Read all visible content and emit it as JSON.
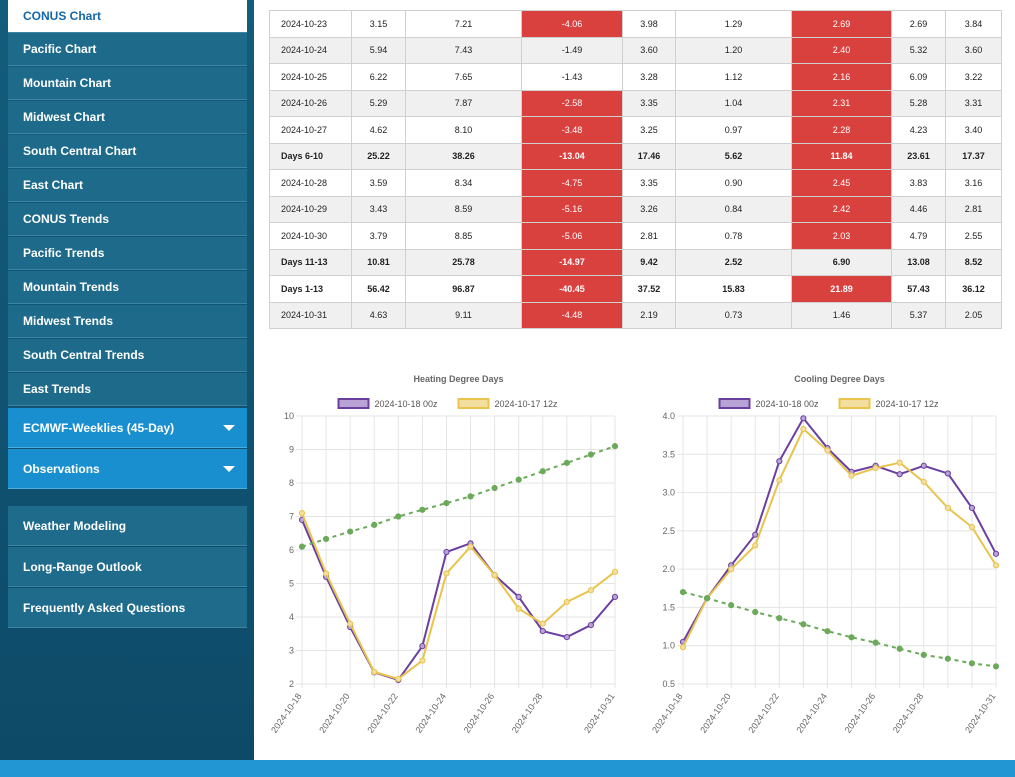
{
  "sidebar": {
    "items": [
      "CONUS Chart",
      "Pacific Chart",
      "Mountain Chart",
      "Midwest Chart",
      "South Central Chart",
      "East Chart",
      "CONUS Trends",
      "Pacific Trends",
      "Mountain Trends",
      "Midwest Trends",
      "South Central Trends",
      "East Trends"
    ],
    "expandable": [
      "ECMWF-Weeklies (45-Day)",
      "Observations"
    ],
    "links": [
      "Weather Modeling",
      "Long-Range Outlook",
      "Frequently Asked Questions"
    ]
  },
  "table": {
    "rows": [
      {
        "label": "2024-10-23",
        "cells": [
          "3.15",
          "7.21",
          "-4.06",
          "3.98",
          "1.29",
          "2.69",
          "2.69",
          "3.84"
        ],
        "highlight": [
          2,
          5
        ]
      },
      {
        "label": "2024-10-24",
        "cells": [
          "5.94",
          "7.43",
          "-1.49",
          "3.60",
          "1.20",
          "2.40",
          "5.32",
          "3.60"
        ],
        "highlight": [
          5
        ]
      },
      {
        "label": "2024-10-25",
        "cells": [
          "6.22",
          "7.65",
          "-1.43",
          "3.28",
          "1.12",
          "2.16",
          "6.09",
          "3.22"
        ],
        "highlight": [
          5
        ]
      },
      {
        "label": "2024-10-26",
        "cells": [
          "5.29",
          "7.87",
          "-2.58",
          "3.35",
          "1.04",
          "2.31",
          "5.28",
          "3.31"
        ],
        "highlight": [
          2,
          5
        ]
      },
      {
        "label": "2024-10-27",
        "cells": [
          "4.62",
          "8.10",
          "-3.48",
          "3.25",
          "0.97",
          "2.28",
          "4.23",
          "3.40"
        ],
        "highlight": [
          2,
          5
        ]
      },
      {
        "label": "Days 6-10",
        "cells": [
          "25.22",
          "38.26",
          "-13.04",
          "17.46",
          "5.62",
          "11.84",
          "23.61",
          "17.37"
        ],
        "highlight": [
          2,
          5
        ],
        "bold": true
      },
      {
        "label": "2024-10-28",
        "cells": [
          "3.59",
          "8.34",
          "-4.75",
          "3.35",
          "0.90",
          "2.45",
          "3.83",
          "3.16"
        ],
        "highlight": [
          2,
          5
        ]
      },
      {
        "label": "2024-10-29",
        "cells": [
          "3.43",
          "8.59",
          "-5.16",
          "3.26",
          "0.84",
          "2.42",
          "4.46",
          "2.81"
        ],
        "highlight": [
          2,
          5
        ]
      },
      {
        "label": "2024-10-30",
        "cells": [
          "3.79",
          "8.85",
          "-5.06",
          "2.81",
          "0.78",
          "2.03",
          "4.79",
          "2.55"
        ],
        "highlight": [
          2,
          5
        ]
      },
      {
        "label": "Days 11-13",
        "cells": [
          "10.81",
          "25.78",
          "-14.97",
          "9.42",
          "2.52",
          "6.90",
          "13.08",
          "8.52"
        ],
        "highlight": [
          2
        ],
        "bold": true
      },
      {
        "label": "Days 1-13",
        "cells": [
          "56.42",
          "96.87",
          "-40.45",
          "37.52",
          "15.83",
          "21.89",
          "57.43",
          "36.12"
        ],
        "highlight": [
          2,
          5
        ],
        "bold": true
      },
      {
        "label": "2024-10-31",
        "cells": [
          "4.63",
          "9.11",
          "-4.48",
          "2.19",
          "0.73",
          "1.46",
          "5.37",
          "2.05"
        ],
        "highlight": [
          2
        ]
      }
    ]
  },
  "chart_data": [
    {
      "type": "line",
      "title": "Heating Degree Days",
      "categories": [
        "2024-10-18",
        null,
        "2024-10-20",
        null,
        "2024-10-22",
        null,
        "2024-10-24",
        null,
        "2024-10-26",
        null,
        "2024-10-28",
        null,
        null,
        "2024-10-31"
      ],
      "ylim": [
        2,
        10
      ],
      "yticks": [
        2,
        3,
        4,
        5,
        6,
        7,
        8,
        9,
        10
      ],
      "grid": true,
      "series": [
        {
          "name": "2024-10-18 00z",
          "color": "#6b3fa0",
          "fill": "#b9a3d6",
          "values": [
            6.9,
            5.2,
            3.7,
            2.35,
            2.12,
            3.13,
            5.94,
            6.2,
            5.25,
            4.6,
            3.58,
            3.4,
            3.76,
            4.6
          ]
        },
        {
          "name": "2024-10-17 12z",
          "color": "#e8c44c",
          "fill": "#f2dfa0",
          "values": [
            7.1,
            5.3,
            3.8,
            2.36,
            2.15,
            2.7,
            5.3,
            6.1,
            5.25,
            4.25,
            3.8,
            4.45,
            4.8,
            5.35
          ]
        },
        {
          "color": "#6aaa5a",
          "dashed": true,
          "values": [
            6.1,
            6.33,
            6.55,
            6.75,
            7.0,
            7.2,
            7.4,
            7.6,
            7.85,
            8.1,
            8.35,
            8.6,
            8.85,
            9.1
          ]
        }
      ]
    },
    {
      "type": "line",
      "title": "Cooling Degree Days",
      "categories": [
        "2024-10-18",
        null,
        "2024-10-20",
        null,
        "2024-10-22",
        null,
        "2024-10-24",
        null,
        "2024-10-26",
        null,
        "2024-10-28",
        null,
        null,
        "2024-10-31"
      ],
      "ylim": [
        0.5,
        4.0
      ],
      "yticks": [
        0.5,
        {
          "value": 1,
          "label": "1.0"
        },
        1.5,
        {
          "value": 2,
          "label": "2.0"
        },
        2.5,
        {
          "value": 3,
          "label": "3.0"
        },
        3.5,
        {
          "value": 4,
          "label": "4.0"
        }
      ],
      "grid": true,
      "series": [
        {
          "name": "2024-10-18 00z",
          "color": "#6b3fa0",
          "fill": "#b9a3d6",
          "values": [
            1.05,
            1.62,
            2.05,
            2.45,
            3.41,
            3.97,
            3.58,
            3.27,
            3.35,
            3.24,
            3.35,
            3.25,
            2.8,
            2.2
          ]
        },
        {
          "name": "2024-10-17 12z",
          "color": "#e8c44c",
          "fill": "#f2dfa0",
          "values": [
            0.98,
            1.62,
            2.0,
            2.31,
            3.16,
            3.83,
            3.55,
            3.22,
            3.32,
            3.39,
            3.14,
            2.8,
            2.55,
            2.05
          ]
        },
        {
          "color": "#6aaa5a",
          "dashed": true,
          "values": [
            1.7,
            1.62,
            1.53,
            1.44,
            1.36,
            1.28,
            1.19,
            1.11,
            1.04,
            0.96,
            0.88,
            0.83,
            0.77,
            0.73
          ]
        }
      ]
    }
  ]
}
